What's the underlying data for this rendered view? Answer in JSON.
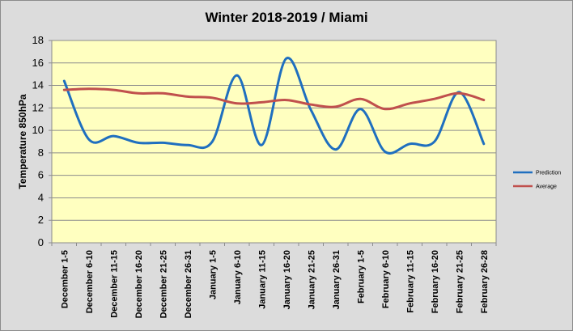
{
  "chart_data": {
    "type": "line",
    "title": "Winter 2018-2019 / Miami",
    "xlabel": "",
    "ylabel": "Temperature 850hPa",
    "ylim": [
      0,
      18
    ],
    "yticks": [
      0,
      2,
      4,
      6,
      8,
      10,
      12,
      14,
      16,
      18
    ],
    "grid": true,
    "legend_position": "right",
    "categories": [
      "December 1-5",
      "December 6-10",
      "December 11-15",
      "December 16-20",
      "December 21-25",
      "December 26-31",
      "January 1-5",
      "January 6-10",
      "January 11-15",
      "January 16-20",
      "January 21-25",
      "January 26-31",
      "February 1-5",
      "February 6-10",
      "February 11-15",
      "February 16-20",
      "February 21-25",
      "February 26-28"
    ],
    "series": [
      {
        "name": "Prediction",
        "color": "#1f6fbf",
        "values": [
          14.4,
          9.2,
          9.5,
          8.9,
          8.9,
          8.7,
          9.0,
          14.9,
          8.7,
          16.4,
          11.8,
          8.3,
          11.9,
          8.1,
          8.8,
          9.0,
          13.4,
          8.8
        ]
      },
      {
        "name": "Average",
        "color": "#c0504d",
        "values": [
          13.6,
          13.7,
          13.6,
          13.3,
          13.3,
          13.0,
          12.9,
          12.4,
          12.5,
          12.7,
          12.3,
          12.1,
          12.8,
          11.9,
          12.4,
          12.8,
          13.3,
          12.7
        ]
      }
    ]
  }
}
